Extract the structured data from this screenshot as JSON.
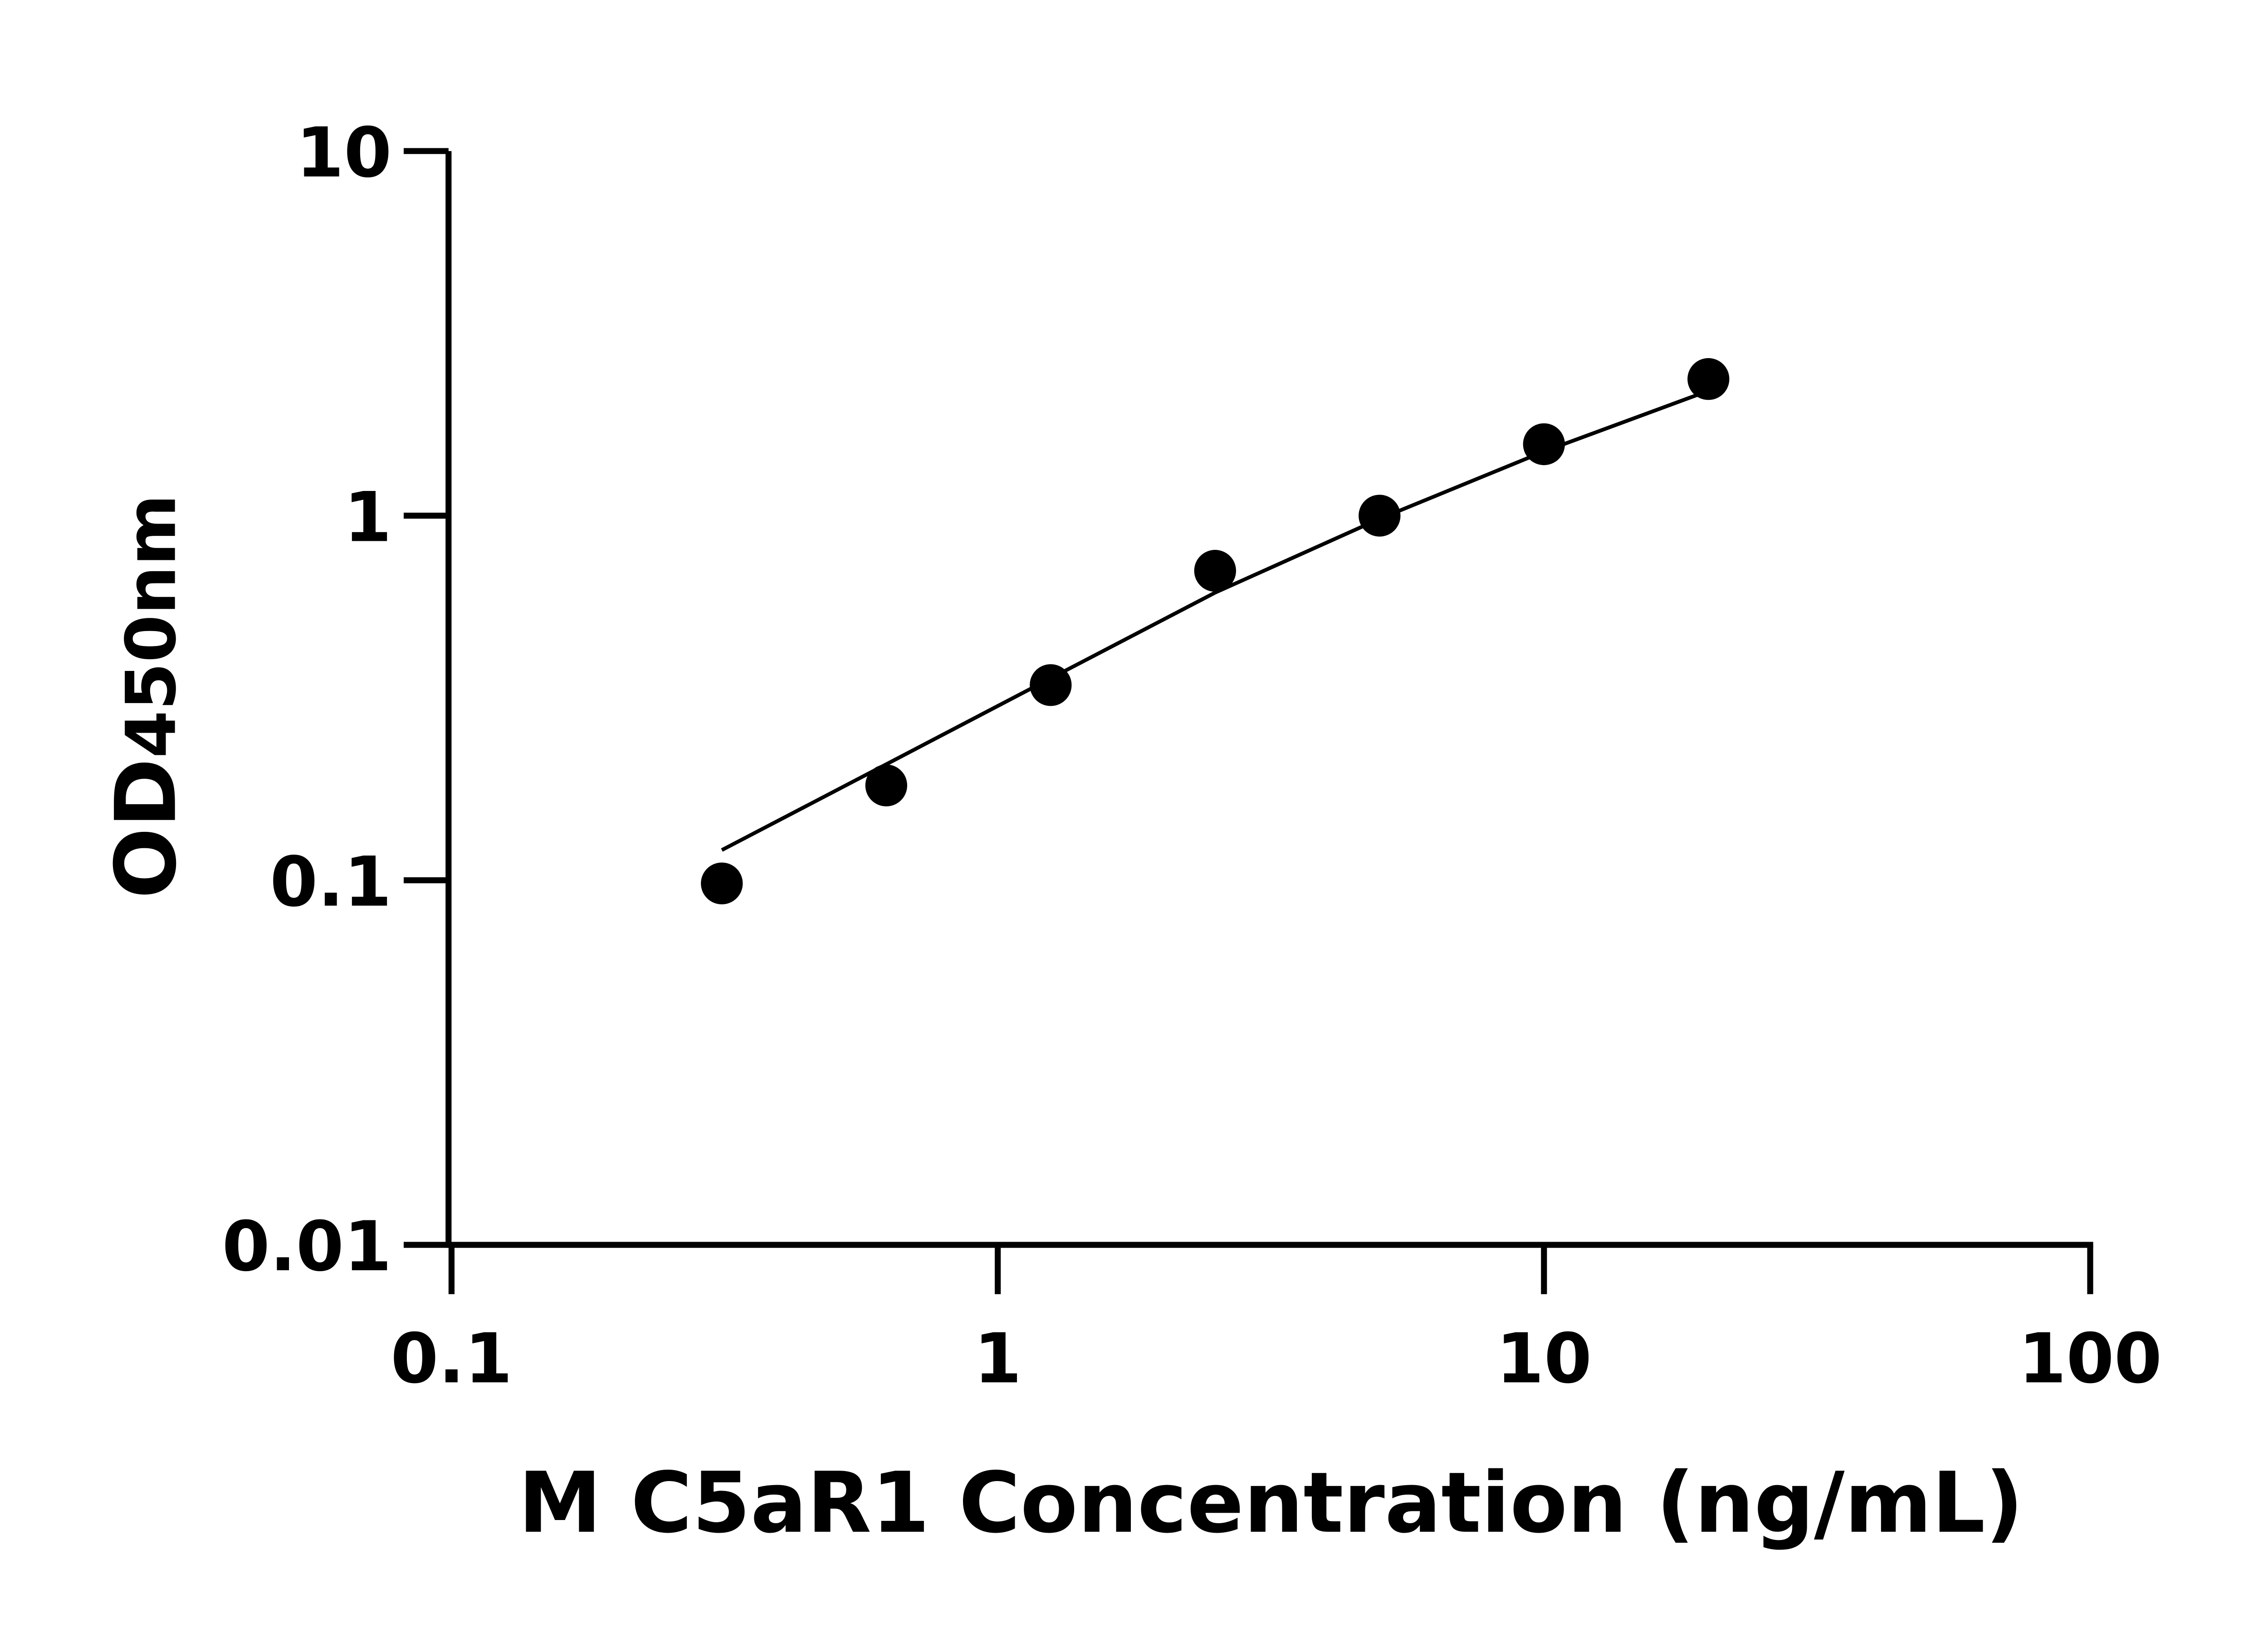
{
  "chart_data": {
    "type": "scatter",
    "title": "",
    "xlabel": "M C5aR1 Concentration (ng/mL)",
    "ylabel_main": "OD",
    "ylabel_sub": "450nm",
    "x_scale": "log",
    "y_scale": "log",
    "xlim": [
      0.1,
      100
    ],
    "ylim": [
      0.01,
      10
    ],
    "x_ticks": [
      "0.1",
      "1",
      "10",
      "100"
    ],
    "y_ticks": [
      "0.01",
      "0.1",
      "1",
      "10"
    ],
    "grid": false,
    "points": [
      {
        "x": 0.3125,
        "y": 0.098
      },
      {
        "x": 0.625,
        "y": 0.182
      },
      {
        "x": 1.25,
        "y": 0.343
      },
      {
        "x": 2.5,
        "y": 0.706
      },
      {
        "x": 5,
        "y": 1.0
      },
      {
        "x": 10,
        "y": 1.57
      },
      {
        "x": 20,
        "y": 2.37
      }
    ],
    "fit_curve": [
      {
        "x": 0.3125,
        "y": 0.121
      },
      {
        "x": 0.625,
        "y": 0.208
      },
      {
        "x": 1.25,
        "y": 0.358
      },
      {
        "x": 2.5,
        "y": 0.615
      },
      {
        "x": 5,
        "y": 0.98
      },
      {
        "x": 10,
        "y": 1.5
      },
      {
        "x": 20,
        "y": 2.2
      }
    ],
    "marker_color": "#000000",
    "line_color": "#000000"
  }
}
